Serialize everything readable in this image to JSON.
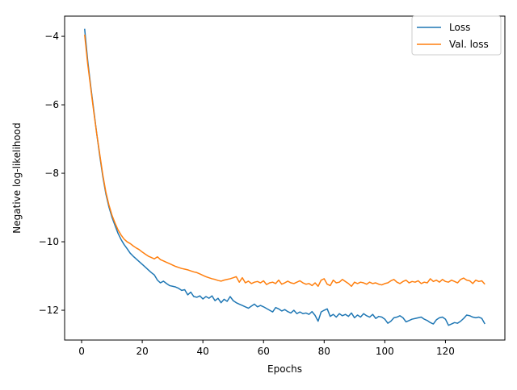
{
  "chart_data": {
    "type": "line",
    "xlabel": "Epochs",
    "ylabel": "Negative log-likelihood",
    "xlim": [
      -5.6,
      139.6
    ],
    "ylim": [
      -12.87,
      -3.41
    ],
    "xticks": [
      0,
      20,
      40,
      60,
      80,
      100,
      120
    ],
    "yticks": [
      -4,
      -6,
      -8,
      -10,
      -12
    ],
    "legend_position": "top-right",
    "grid": false,
    "x": [
      1,
      2,
      3,
      4,
      5,
      6,
      7,
      8,
      9,
      10,
      11,
      12,
      13,
      14,
      15,
      16,
      17,
      18,
      19,
      20,
      21,
      22,
      23,
      24,
      25,
      26,
      27,
      28,
      29,
      30,
      31,
      32,
      33,
      34,
      35,
      36,
      37,
      38,
      39,
      40,
      41,
      42,
      43,
      44,
      45,
      46,
      47,
      48,
      49,
      50,
      51,
      52,
      53,
      54,
      55,
      56,
      57,
      58,
      59,
      60,
      61,
      62,
      63,
      64,
      65,
      66,
      67,
      68,
      69,
      70,
      71,
      72,
      73,
      74,
      75,
      76,
      77,
      78,
      79,
      80,
      81,
      82,
      83,
      84,
      85,
      86,
      87,
      88,
      89,
      90,
      91,
      92,
      93,
      94,
      95,
      96,
      97,
      98,
      99,
      100,
      101,
      102,
      103,
      104,
      105,
      106,
      107,
      108,
      109,
      110,
      111,
      112,
      113,
      114,
      115,
      116,
      117,
      118,
      119,
      120,
      121,
      122,
      123,
      124,
      125,
      126,
      127,
      128,
      129,
      130,
      131,
      132,
      133
    ],
    "series": [
      {
        "name": "Loss",
        "color": "#1f77b4",
        "values": [
          -3.78,
          -4.7,
          -5.45,
          -6.15,
          -6.85,
          -7.5,
          -8.1,
          -8.6,
          -8.98,
          -9.28,
          -9.52,
          -9.75,
          -9.93,
          -10.08,
          -10.2,
          -10.33,
          -10.42,
          -10.5,
          -10.58,
          -10.66,
          -10.74,
          -10.82,
          -10.9,
          -10.97,
          -11.12,
          -11.2,
          -11.15,
          -11.22,
          -11.28,
          -11.3,
          -11.32,
          -11.36,
          -11.42,
          -11.4,
          -11.55,
          -11.47,
          -11.6,
          -11.62,
          -11.58,
          -11.67,
          -11.6,
          -11.65,
          -11.58,
          -11.72,
          -11.65,
          -11.78,
          -11.68,
          -11.74,
          -11.6,
          -11.72,
          -11.78,
          -11.82,
          -11.86,
          -11.9,
          -11.94,
          -11.88,
          -11.82,
          -11.9,
          -11.86,
          -11.9,
          -11.95,
          -12.0,
          -12.05,
          -11.92,
          -11.96,
          -12.02,
          -11.98,
          -12.04,
          -12.08,
          -12.0,
          -12.1,
          -12.05,
          -12.1,
          -12.08,
          -12.12,
          -12.04,
          -12.15,
          -12.32,
          -12.05,
          -12.0,
          -11.96,
          -12.18,
          -12.12,
          -12.2,
          -12.1,
          -12.16,
          -12.12,
          -12.18,
          -12.08,
          -12.22,
          -12.14,
          -12.2,
          -12.1,
          -12.16,
          -12.2,
          -12.12,
          -12.24,
          -12.18,
          -12.2,
          -12.26,
          -12.38,
          -12.32,
          -12.22,
          -12.2,
          -12.16,
          -12.22,
          -12.34,
          -12.3,
          -12.26,
          -12.24,
          -12.22,
          -12.2,
          -12.26,
          -12.3,
          -12.36,
          -12.4,
          -12.28,
          -12.22,
          -12.2,
          -12.26,
          -12.44,
          -12.4,
          -12.36,
          -12.38,
          -12.32,
          -12.24,
          -12.14,
          -12.16,
          -12.2,
          -12.22,
          -12.2,
          -12.24,
          -12.4
        ]
      },
      {
        "name": "Val. loss",
        "color": "#ff7f0e",
        "values": [
          -3.95,
          -4.8,
          -5.5,
          -6.2,
          -6.85,
          -7.45,
          -8.05,
          -8.55,
          -8.92,
          -9.22,
          -9.45,
          -9.65,
          -9.8,
          -9.92,
          -10.0,
          -10.05,
          -10.12,
          -10.18,
          -10.23,
          -10.3,
          -10.36,
          -10.42,
          -10.46,
          -10.5,
          -10.44,
          -10.52,
          -10.56,
          -10.6,
          -10.64,
          -10.68,
          -10.72,
          -10.75,
          -10.78,
          -10.8,
          -10.82,
          -10.85,
          -10.88,
          -10.9,
          -10.94,
          -10.98,
          -11.02,
          -11.05,
          -11.08,
          -11.1,
          -11.13,
          -11.15,
          -11.12,
          -11.1,
          -11.08,
          -11.05,
          -11.02,
          -11.18,
          -11.05,
          -11.2,
          -11.15,
          -11.22,
          -11.18,
          -11.16,
          -11.2,
          -11.14,
          -11.25,
          -11.2,
          -11.18,
          -11.22,
          -11.12,
          -11.24,
          -11.2,
          -11.15,
          -11.2,
          -11.22,
          -11.18,
          -11.14,
          -11.2,
          -11.24,
          -11.22,
          -11.28,
          -11.2,
          -11.3,
          -11.12,
          -11.08,
          -11.24,
          -11.28,
          -11.12,
          -11.2,
          -11.18,
          -11.1,
          -11.16,
          -11.22,
          -11.3,
          -11.18,
          -11.22,
          -11.18,
          -11.2,
          -11.24,
          -11.18,
          -11.22,
          -11.2,
          -11.24,
          -11.26,
          -11.22,
          -11.2,
          -11.14,
          -11.1,
          -11.18,
          -11.22,
          -11.16,
          -11.12,
          -11.2,
          -11.16,
          -11.18,
          -11.14,
          -11.22,
          -11.18,
          -11.2,
          -11.08,
          -11.16,
          -11.12,
          -11.18,
          -11.1,
          -11.16,
          -11.18,
          -11.12,
          -11.16,
          -11.2,
          -11.1,
          -11.06,
          -11.12,
          -11.14,
          -11.22,
          -11.12,
          -11.16,
          -11.14,
          -11.24
        ]
      }
    ]
  }
}
